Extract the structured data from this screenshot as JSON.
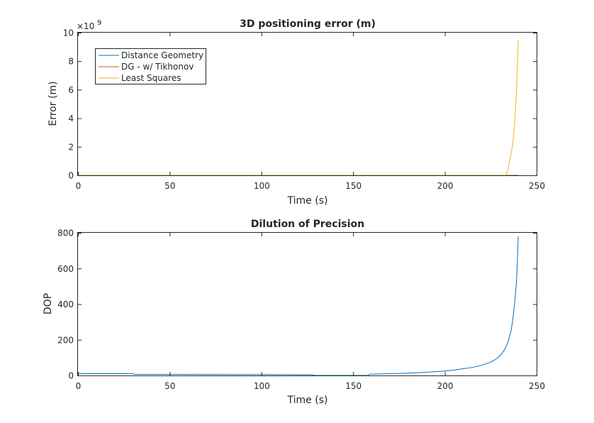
{
  "chart_data": [
    {
      "type": "line",
      "title": "3D positioning error (m)",
      "xlabel": "Time (s)",
      "ylabel": "Error (m)",
      "xlim": [
        0,
        250
      ],
      "ylim": [
        0,
        10
      ],
      "y_exponent": "×10",
      "y_exponent_power": "9",
      "xticks": [
        "0",
        "50",
        "100",
        "150",
        "200",
        "250"
      ],
      "yticks": [
        "0",
        "2",
        "4",
        "6",
        "8",
        "10"
      ],
      "grid": false,
      "legend_position": "top-left",
      "series": [
        {
          "name": "Distance Geometry",
          "color": "#0072BD",
          "x": [
            0,
            50,
            100,
            150,
            200,
            234,
            240
          ],
          "y": [
            0,
            0,
            0,
            0,
            0,
            0,
            0
          ]
        },
        {
          "name": "DG - w/ Tikhonov",
          "color": "#D95319",
          "x": [
            0,
            50,
            100,
            150,
            200,
            234,
            240
          ],
          "y": [
            0,
            0,
            0,
            0,
            0,
            0,
            0
          ]
        },
        {
          "name": "Least Squares",
          "color": "#EDB120",
          "x": [
            0,
            100,
            200,
            233,
            234,
            235,
            236,
            237,
            238,
            239,
            239.5,
            240
          ],
          "y": [
            0,
            0,
            0,
            0,
            0.2,
            0.8,
            1.4,
            2.2,
            3.6,
            5.8,
            7.6,
            9.5
          ]
        }
      ]
    },
    {
      "type": "line",
      "title": "Dilution of Precision",
      "xlabel": "Time (s)",
      "ylabel": "DOP",
      "xlim": [
        0,
        250
      ],
      "ylim": [
        0,
        800
      ],
      "xticks": [
        "0",
        "50",
        "100",
        "150",
        "200",
        "250"
      ],
      "yticks": [
        "0",
        "200",
        "400",
        "600",
        "800"
      ],
      "grid": false,
      "series": [
        {
          "color": "#0072BD",
          "x": [
            0,
            30,
            31,
            50,
            100,
            128,
            129,
            158,
            159,
            170,
            180,
            190,
            200,
            205,
            210,
            215,
            220,
            225,
            228,
            230,
            232,
            234,
            236,
            237,
            238,
            239,
            239.5,
            240
          ],
          "y": [
            10,
            10,
            6,
            6,
            5,
            4,
            0,
            0,
            7,
            10,
            13,
            18,
            25,
            30,
            38,
            45,
            57,
            75,
            92,
            110,
            135,
            175,
            245,
            310,
            400,
            520,
            630,
            780
          ]
        }
      ]
    }
  ]
}
